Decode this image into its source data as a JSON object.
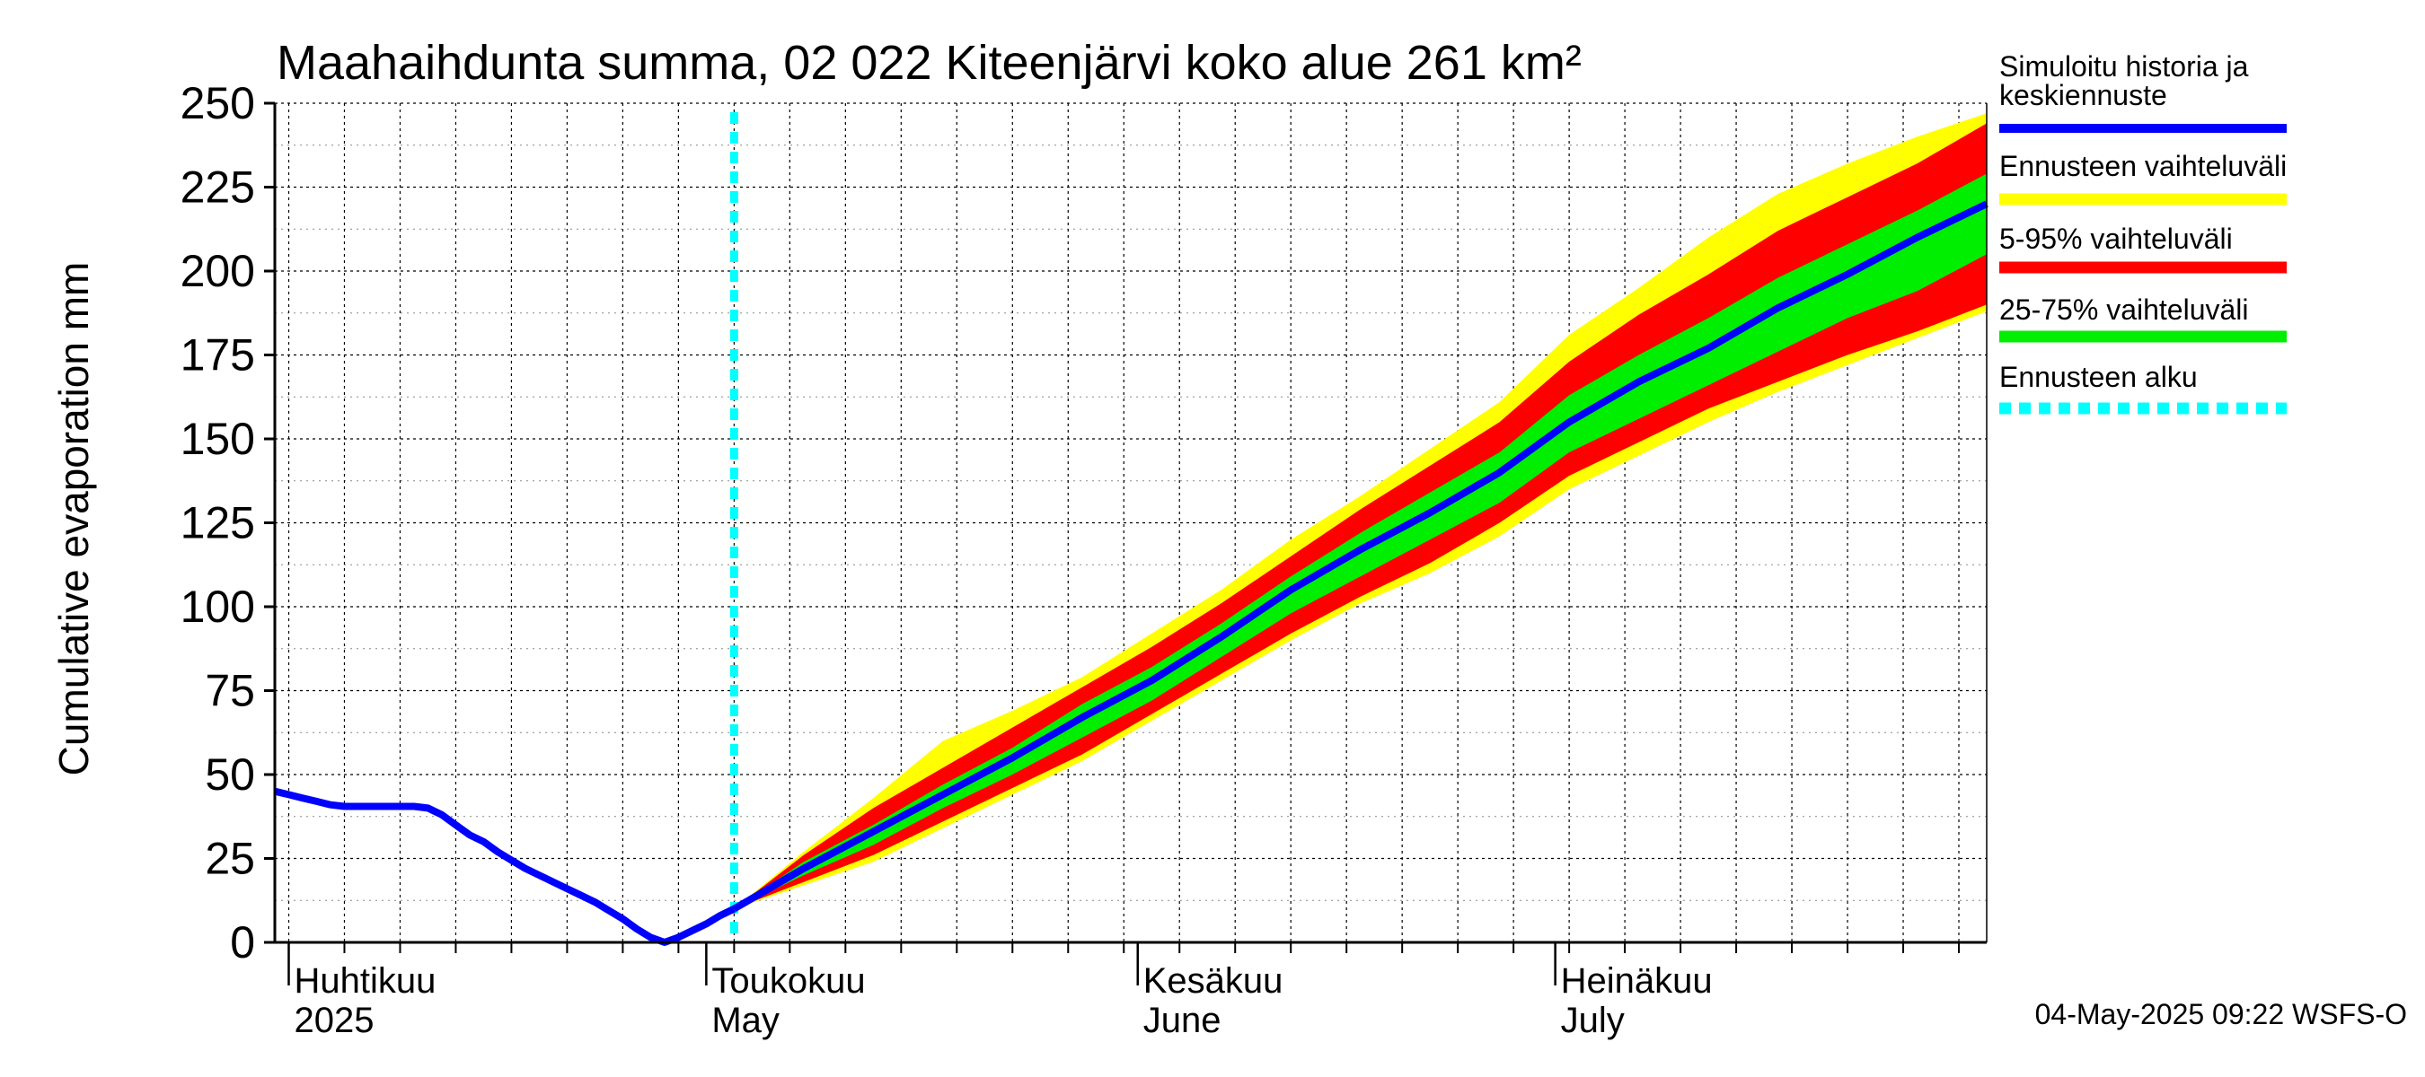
{
  "chart_data": {
    "type": "area",
    "title": "Maahaihdunta summa, 02 022 Kiteenjärvi koko alue 261 km²",
    "ylabel": "Cumulative evaporation   mm",
    "ylim": [
      0,
      250
    ],
    "yticks": [
      0,
      25,
      50,
      75,
      100,
      125,
      150,
      175,
      200,
      225,
      250
    ],
    "x_start": "2025-03-31",
    "x_end": "2025-08-01",
    "grid": true,
    "month_labels": [
      {
        "date": "2025-04-01",
        "fi": "Huhtikuu",
        "en": "2025"
      },
      {
        "date": "2025-05-01",
        "fi": "Toukokuu",
        "en": "May"
      },
      {
        "date": "2025-06-01",
        "fi": "Kesäkuu",
        "en": "June"
      },
      {
        "date": "2025-07-01",
        "fi": "Heinäkuu",
        "en": "July"
      }
    ],
    "forecast_start": "2025-05-03",
    "history": {
      "x": [
        "2025-03-31",
        "2025-04-01",
        "2025-04-02",
        "2025-04-03",
        "2025-04-04",
        "2025-04-05",
        "2025-04-06",
        "2025-04-07",
        "2025-04-08",
        "2025-04-09",
        "2025-04-10",
        "2025-04-11",
        "2025-04-12",
        "2025-04-13",
        "2025-04-14",
        "2025-04-15",
        "2025-04-16",
        "2025-04-17",
        "2025-04-18",
        "2025-04-19",
        "2025-04-20",
        "2025-04-21",
        "2025-04-22",
        "2025-04-23",
        "2025-04-24",
        "2025-04-25",
        "2025-04-26",
        "2025-04-27",
        "2025-04-28",
        "2025-04-29",
        "2025-04-30",
        "2025-05-01",
        "2025-05-02",
        "2025-05-03"
      ],
      "y": [
        45,
        44,
        43,
        42,
        41,
        40.5,
        40.5,
        40.5,
        40.5,
        40.5,
        40.5,
        40,
        38,
        35,
        32,
        30,
        27,
        24.5,
        22,
        20,
        18,
        16,
        14,
        12,
        9.5,
        7,
        4,
        1.5,
        0,
        1.5,
        3.5,
        5.5,
        8,
        10
      ]
    },
    "forecast": {
      "x": [
        "2025-05-03",
        "2025-05-08",
        "2025-05-13",
        "2025-05-18",
        "2025-05-23",
        "2025-05-28",
        "2025-06-02",
        "2025-06-07",
        "2025-06-12",
        "2025-06-17",
        "2025-06-22",
        "2025-06-27",
        "2025-07-02",
        "2025-07-07",
        "2025-07-12",
        "2025-07-17",
        "2025-07-22",
        "2025-07-27",
        "2025-08-01"
      ],
      "median": [
        10,
        22,
        33,
        44,
        55,
        67,
        78,
        91,
        105,
        117,
        128,
        140,
        155,
        167,
        177,
        189,
        199,
        210,
        220
      ],
      "p25": [
        10,
        20,
        29,
        40,
        50,
        61,
        72,
        85,
        98,
        109,
        120,
        131,
        146,
        156,
        166,
        176,
        186,
        194,
        205
      ],
      "p75": [
        10,
        24,
        35,
        47,
        58,
        71,
        82,
        95,
        109,
        122,
        134,
        146,
        163,
        175,
        186,
        198,
        208,
        218,
        229
      ],
      "p5": [
        10,
        18,
        26,
        36,
        46,
        56,
        68,
        80,
        92,
        103,
        113,
        125,
        139,
        149,
        159,
        167,
        175,
        182,
        190
      ],
      "p95": [
        10,
        26,
        40,
        52,
        64,
        76,
        88,
        101,
        115,
        129,
        142,
        155,
        173,
        187,
        199,
        212,
        222,
        232,
        244
      ],
      "min": [
        10,
        17,
        24,
        34,
        44,
        54,
        66,
        78,
        90,
        101,
        110,
        121,
        135,
        145,
        155,
        164,
        172,
        180,
        188
      ],
      "max": [
        10,
        27,
        43,
        60,
        69,
        79,
        92,
        105,
        120,
        133,
        147,
        161,
        181,
        195,
        210,
        223,
        232,
        240,
        247
      ]
    },
    "legend": [
      {
        "label": "Simuloitu historia ja keskiennuste",
        "color": "#0000ff",
        "style": "solid"
      },
      {
        "label": "Ennusteen vaihteluväli",
        "color": "#ffff00",
        "style": "solid"
      },
      {
        "label": "5-95% vaihteluväli",
        "color": "#ff0000",
        "style": "solid"
      },
      {
        "label": "25-75% vaihteluväli",
        "color": "#00ee00",
        "style": "solid"
      },
      {
        "label": "Ennusteen alku",
        "color": "#00ffff",
        "style": "dashed"
      }
    ],
    "legend_placement": "right"
  },
  "footer": "04-May-2025 09:22 WSFS-O",
  "colors": {
    "history": "#0000ff",
    "range": "#ffff00",
    "p5_95": "#ff0000",
    "p25_75": "#00ee00",
    "forecast_start": "#00ffff",
    "grid": "#000000"
  }
}
